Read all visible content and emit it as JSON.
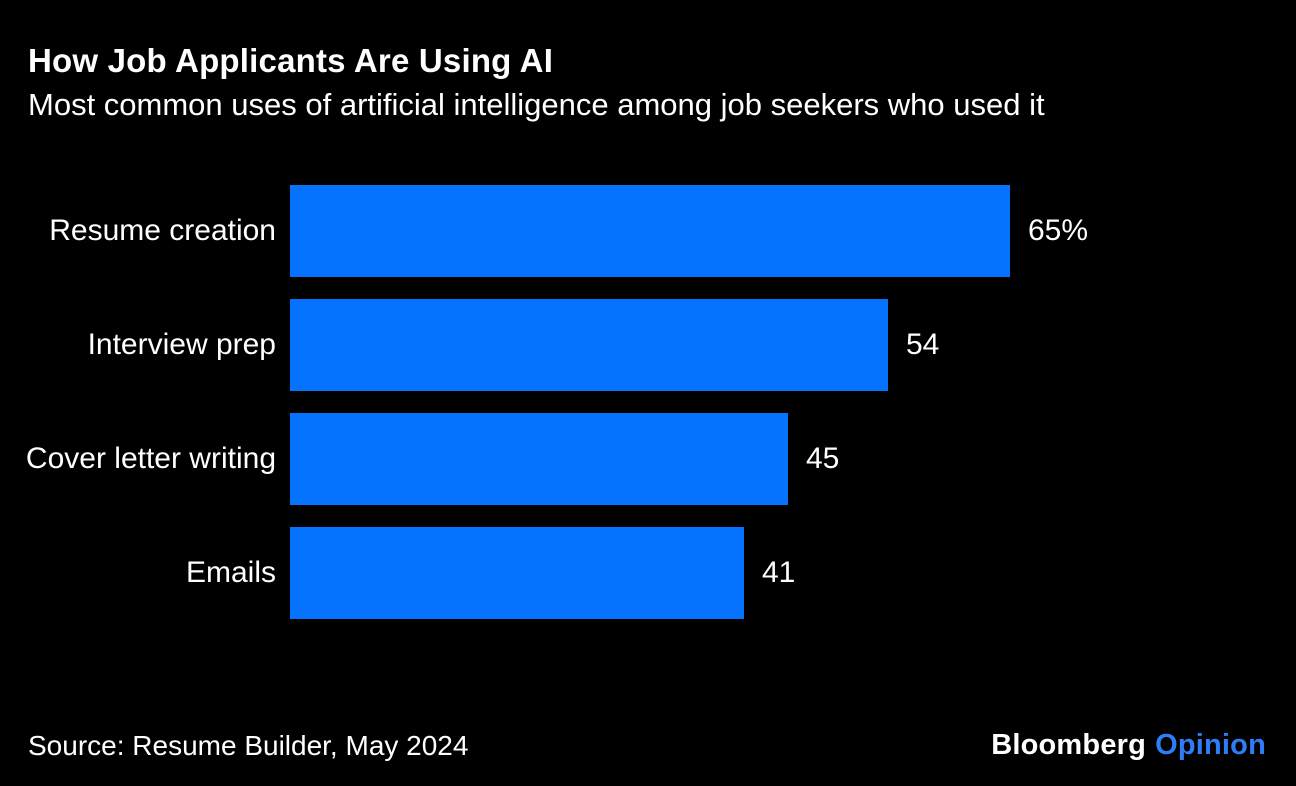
{
  "header": {
    "title": "How Job Applicants Are Using AI",
    "subtitle": "Most common uses of artificial intelligence among job seekers who used it"
  },
  "footer": {
    "source": "Source: Resume Builder, May 2024",
    "logo_primary": "Bloomberg",
    "logo_secondary": "Opinion"
  },
  "chart_data": {
    "type": "bar",
    "orientation": "horizontal",
    "title": "How Job Applicants Are Using AI",
    "subtitle": "Most common uses of artificial intelligence among job seekers who used it",
    "categories": [
      "Resume creation",
      "Interview prep",
      "Cover letter writing",
      "Emails"
    ],
    "values": [
      65,
      54,
      45,
      41
    ],
    "value_labels": [
      "65%",
      "54",
      "45",
      "41"
    ],
    "unit": "percent",
    "xlim": [
      0,
      65
    ],
    "grid": false,
    "legend": "none",
    "bar_color": "#0673ff",
    "background_color": "#000000",
    "text_color": "#ffffff"
  },
  "colors": {
    "background": "#000000",
    "bar": "#0673ff",
    "text": "#ffffff",
    "logo_secondary": "#2e7df7"
  }
}
